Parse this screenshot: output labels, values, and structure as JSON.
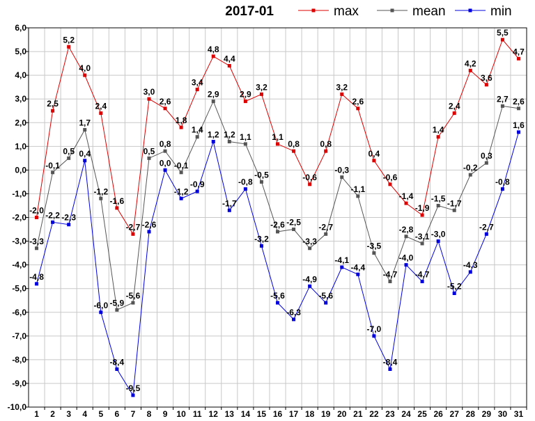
{
  "chart_data": {
    "type": "line",
    "title": "2017-01",
    "xlabel": "",
    "ylabel": "",
    "ylim": [
      -10,
      6
    ],
    "y_ticks": [
      "6,0",
      "5,0",
      "4,0",
      "3,0",
      "2,0",
      "1,0",
      "0,0",
      "-1,0",
      "-2,0",
      "-3,0",
      "-4,0",
      "-5,0",
      "-6,0",
      "-7,0",
      "-8,0",
      "-9,0",
      "-10,0"
    ],
    "grid": true,
    "legend_position": "top-right",
    "decimal_separator": ",",
    "x": [
      "1",
      "2",
      "3",
      "4",
      "5",
      "6",
      "7",
      "8",
      "9",
      "10",
      "11",
      "12",
      "13",
      "14",
      "15",
      "16",
      "17",
      "18",
      "19",
      "20",
      "21",
      "22",
      "23",
      "24",
      "25",
      "26",
      "27",
      "28",
      "29",
      "30",
      "31"
    ],
    "series": [
      {
        "name": "max",
        "color": "#dd0000",
        "values": [
          -2.0,
          2.5,
          5.2,
          4.0,
          2.4,
          -1.6,
          -2.7,
          3.0,
          2.6,
          1.8,
          3.4,
          4.8,
          4.4,
          2.9,
          3.2,
          1.1,
          0.8,
          -0.6,
          0.8,
          3.2,
          2.6,
          0.4,
          -0.6,
          -1.4,
          -1.9,
          1.4,
          2.4,
          4.2,
          3.6,
          5.5,
          4.7
        ]
      },
      {
        "name": "mean",
        "color": "#555555",
        "values": [
          -3.3,
          -0.1,
          0.5,
          1.7,
          -1.2,
          -5.9,
          -5.6,
          0.5,
          0.8,
          -0.1,
          1.4,
          2.9,
          1.2,
          1.1,
          -0.5,
          -2.6,
          -2.5,
          -3.3,
          -2.7,
          -0.3,
          -1.1,
          -3.5,
          -4.7,
          -2.8,
          -3.1,
          -1.5,
          -1.7,
          -0.2,
          0.3,
          2.7,
          2.6
        ]
      },
      {
        "name": "min",
        "color": "#0000dd",
        "values": [
          -4.8,
          -2.2,
          -2.3,
          0.4,
          -6.0,
          -8.4,
          -9.5,
          -2.6,
          0.0,
          -1.2,
          -0.9,
          1.2,
          -1.7,
          -0.8,
          -3.2,
          -5.6,
          -6.3,
          -4.9,
          -5.6,
          -4.1,
          -4.4,
          -7.0,
          -8.4,
          -4.0,
          -4.7,
          -3.0,
          -5.2,
          -4.3,
          -2.7,
          -0.8,
          1.6
        ]
      }
    ]
  }
}
